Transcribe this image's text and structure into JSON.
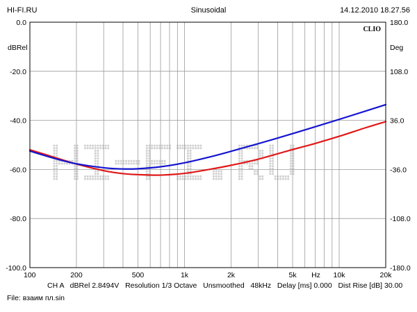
{
  "header": {
    "left": "HI-FI.RU",
    "center": "Sinusoidal",
    "right": "14.12.2010 18.27.56"
  },
  "brand": "CLIO",
  "watermark": "HI-FI.RU",
  "footer": {
    "line1": "CH A   dBRel 2.8494V   Resolution 1/3 Octave   Unsmoothed   48kHz   Delay [ms] 0.000   Dist Rise [dB] 30.00",
    "line2": "File: взаим пл.sin"
  },
  "chart_data": {
    "type": "line",
    "xscale": "log",
    "xlim": [
      100,
      20000
    ],
    "ylim": [
      -100,
      0
    ],
    "y2lim": [
      -180,
      180
    ],
    "xlabel": "Hz",
    "ylabel": "dBRel",
    "y2label": "Deg",
    "grid": true,
    "x_ticks": [
      {
        "v": 100,
        "label": "100"
      },
      {
        "v": 200,
        "label": "200"
      },
      {
        "v": 500,
        "label": "500"
      },
      {
        "v": 1000,
        "label": "1k"
      },
      {
        "v": 2000,
        "label": "2k"
      },
      {
        "v": 5000,
        "label": "5k"
      },
      {
        "v": 10000,
        "label": "10k"
      },
      {
        "v": 20000,
        "label": "20k"
      }
    ],
    "y_ticks": [
      "0.0",
      "-20.0",
      "-40.0",
      "-60.0",
      "-80.0",
      "-100.0"
    ],
    "y2_ticks": [
      "180.0",
      "108.0",
      "36.0",
      "-36.0",
      "-108.0",
      "-180.0"
    ],
    "series": [
      {
        "color": "#1515d0",
        "x": [
          100,
          150,
          200,
          300,
          400,
          500,
          700,
          1000,
          1500,
          2000,
          3000,
          5000,
          7000,
          10000,
          15000,
          20000
        ],
        "y": [
          -52.5,
          -55.8,
          -57.7,
          -59.3,
          -59.8,
          -59.7,
          -58.9,
          -57.3,
          -54.7,
          -52.6,
          -49.5,
          -45.4,
          -42.6,
          -39.6,
          -36.1,
          -33.6
        ]
      },
      {
        "color": "#e01818",
        "x": [
          100,
          150,
          200,
          300,
          400,
          500,
          700,
          1000,
          1500,
          2000,
          3000,
          5000,
          7000,
          10000,
          15000,
          20000
        ],
        "y": [
          -52.0,
          -55.4,
          -57.8,
          -60.5,
          -61.7,
          -62.1,
          -62.3,
          -61.6,
          -59.8,
          -58.3,
          -55.8,
          -51.9,
          -49.4,
          -46.5,
          -42.9,
          -40.5
        ]
      }
    ]
  }
}
